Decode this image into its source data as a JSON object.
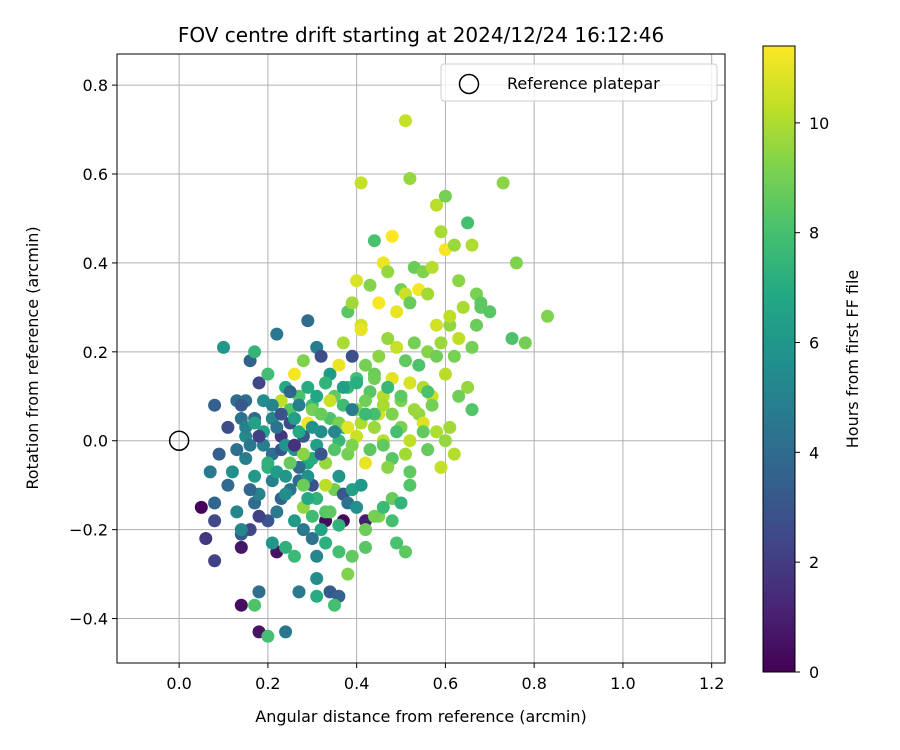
{
  "chart_data": {
    "type": "scatter",
    "title": "FOV centre drift starting at 2024/12/24 16:12:46",
    "xlabel": "Angular distance from reference (arcmin)",
    "ylabel": "Rotation from reference (arcmin)",
    "xlim": [
      -0.14,
      1.23
    ],
    "ylim": [
      -0.5,
      0.87
    ],
    "xticks": [
      0.0,
      0.2,
      0.4,
      0.6,
      0.8,
      1.0,
      1.2
    ],
    "xtick_labels": [
      "0.0",
      "0.2",
      "0.4",
      "0.6",
      "0.8",
      "1.0",
      "1.2"
    ],
    "yticks": [
      -0.4,
      -0.2,
      0.0,
      0.2,
      0.4,
      0.6,
      0.8
    ],
    "ytick_labels": [
      "−0.4",
      "−0.2",
      "0.0",
      "0.2",
      "0.4",
      "0.6",
      "0.8"
    ],
    "grid": true,
    "legend": {
      "position": "upper-right",
      "entries": [
        "Reference platepar"
      ]
    },
    "reference_point": {
      "x": 0.0,
      "y": 0.0,
      "label": "Reference platepar"
    },
    "colorbar": {
      "label": "Hours from first FF file",
      "min": 0,
      "max": 11.4,
      "ticks": [
        0,
        2,
        4,
        6,
        8,
        10
      ],
      "tick_labels": [
        "0",
        "2",
        "4",
        "6",
        "8",
        "10"
      ],
      "colormap": "viridis"
    },
    "points": [
      [
        0.05,
        -0.15,
        0.1
      ],
      [
        0.06,
        -0.22,
        1.8
      ],
      [
        0.08,
        -0.27,
        2.2
      ],
      [
        0.14,
        -0.37,
        0.4
      ],
      [
        0.18,
        -0.43,
        0.6
      ],
      [
        0.22,
        -0.25,
        0.5
      ],
      [
        0.33,
        -0.18,
        0.3
      ],
      [
        0.37,
        -0.18,
        0.2
      ],
      [
        0.42,
        -0.18,
        0.9
      ],
      [
        0.14,
        -0.24,
        0.7
      ],
      [
        0.18,
        -0.34,
        4.1
      ],
      [
        0.24,
        -0.43,
        4.5
      ],
      [
        0.2,
        -0.44,
        8.0
      ],
      [
        0.17,
        -0.37,
        8.2
      ],
      [
        0.27,
        -0.34,
        4.6
      ],
      [
        0.31,
        -0.35,
        7.0
      ],
      [
        0.34,
        -0.34,
        3.2
      ],
      [
        0.36,
        -0.35,
        3.5
      ],
      [
        0.35,
        -0.37,
        8.0
      ],
      [
        0.31,
        -0.31,
        5.5
      ],
      [
        0.38,
        -0.3,
        9.2
      ],
      [
        0.39,
        -0.26,
        8.6
      ],
      [
        0.42,
        -0.24,
        8.4
      ],
      [
        0.49,
        -0.23,
        8.1
      ],
      [
        0.51,
        -0.25,
        8.5
      ],
      [
        0.08,
        -0.18,
        2.5
      ],
      [
        0.11,
        -0.1,
        3.9
      ],
      [
        0.13,
        -0.16,
        5.1
      ],
      [
        0.14,
        -0.21,
        3.3
      ],
      [
        0.16,
        -0.2,
        2.5
      ],
      [
        0.17,
        -0.14,
        4.0
      ],
      [
        0.2,
        -0.18,
        3.0
      ],
      [
        0.21,
        -0.23,
        6.0
      ],
      [
        0.24,
        -0.24,
        7.3
      ],
      [
        0.26,
        -0.26,
        7.7
      ],
      [
        0.28,
        -0.2,
        4.6
      ],
      [
        0.3,
        -0.22,
        4.3
      ],
      [
        0.31,
        -0.26,
        5.2
      ],
      [
        0.33,
        -0.23,
        7.2
      ],
      [
        0.36,
        -0.25,
        8.0
      ],
      [
        0.08,
        -0.14,
        3.7
      ],
      [
        0.12,
        -0.07,
        5.6
      ],
      [
        0.15,
        -0.04,
        4.9
      ],
      [
        0.17,
        -0.08,
        6.1
      ],
      [
        0.18,
        -0.12,
        5.0
      ],
      [
        0.2,
        -0.06,
        7.2
      ],
      [
        0.21,
        -0.09,
        4.8
      ],
      [
        0.23,
        -0.13,
        3.6
      ],
      [
        0.25,
        -0.11,
        4.4
      ],
      [
        0.27,
        -0.09,
        3.9
      ],
      [
        0.29,
        -0.05,
        6.8
      ],
      [
        0.3,
        -0.1,
        2.9
      ],
      [
        0.31,
        -0.13,
        7.4
      ],
      [
        0.33,
        -0.16,
        8.3
      ],
      [
        0.35,
        -0.11,
        8.9
      ],
      [
        0.37,
        -0.12,
        3.1
      ],
      [
        0.39,
        -0.11,
        6.5
      ],
      [
        0.41,
        -0.1,
        6.0
      ],
      [
        0.45,
        -0.17,
        9.2
      ],
      [
        0.48,
        -0.13,
        8.7
      ],
      [
        0.07,
        -0.07,
        4.6
      ],
      [
        0.09,
        -0.03,
        3.4
      ],
      [
        0.11,
        0.03,
        2.6
      ],
      [
        0.13,
        -0.02,
        4.2
      ],
      [
        0.15,
        0.01,
        5.3
      ],
      [
        0.17,
        0.05,
        3.9
      ],
      [
        0.19,
        0.02,
        6.6
      ],
      [
        0.21,
        -0.03,
        4.1
      ],
      [
        0.23,
        0.01,
        1.7
      ],
      [
        0.25,
        0.04,
        2.6
      ],
      [
        0.26,
        -0.02,
        5.8
      ],
      [
        0.28,
        0.01,
        3.1
      ],
      [
        0.3,
        -0.04,
        7.0
      ],
      [
        0.32,
        0.02,
        5.5
      ],
      [
        0.34,
        0.05,
        8.2
      ],
      [
        0.36,
        0.0,
        7.6
      ],
      [
        0.38,
        -0.03,
        9.0
      ],
      [
        0.4,
        0.01,
        10.5
      ],
      [
        0.42,
        -0.05,
        11.0
      ],
      [
        0.44,
        0.03,
        9.7
      ],
      [
        0.46,
        0.0,
        10.2
      ],
      [
        0.48,
        -0.04,
        8.4
      ],
      [
        0.5,
        0.03,
        9.1
      ],
      [
        0.52,
        0.0,
        10.3
      ],
      [
        0.54,
        0.06,
        9.5
      ],
      [
        0.56,
        -0.02,
        8.7
      ],
      [
        0.58,
        0.02,
        10.0
      ],
      [
        0.59,
        -0.06,
        10.4
      ],
      [
        0.61,
        0.03,
        9.8
      ],
      [
        0.52,
        -0.07,
        8.6
      ],
      [
        0.08,
        0.08,
        3.4
      ],
      [
        0.1,
        0.21,
        6.0
      ],
      [
        0.14,
        0.05,
        4.4
      ],
      [
        0.15,
        0.09,
        4.0
      ],
      [
        0.16,
        0.18,
        3.6
      ],
      [
        0.17,
        0.2,
        7.5
      ],
      [
        0.18,
        0.13,
        2.4
      ],
      [
        0.2,
        0.15,
        7.9
      ],
      [
        0.22,
        0.24,
        4.5
      ],
      [
        0.23,
        0.09,
        10.3
      ],
      [
        0.24,
        0.12,
        6.9
      ],
      [
        0.25,
        0.07,
        8.3
      ],
      [
        0.26,
        0.15,
        11.2
      ],
      [
        0.27,
        0.1,
        8.1
      ],
      [
        0.28,
        0.18,
        9.2
      ],
      [
        0.29,
        0.27,
        4.0
      ],
      [
        0.3,
        0.08,
        7.7
      ],
      [
        0.31,
        0.21,
        4.8
      ],
      [
        0.32,
        0.19,
        2.7
      ],
      [
        0.33,
        0.13,
        6.6
      ],
      [
        0.34,
        0.15,
        6.2
      ],
      [
        0.35,
        0.1,
        8.6
      ],
      [
        0.36,
        0.17,
        11.1
      ],
      [
        0.37,
        0.22,
        9.9
      ],
      [
        0.38,
        0.12,
        7.5
      ],
      [
        0.39,
        0.19,
        2.8
      ],
      [
        0.4,
        0.14,
        7.9
      ],
      [
        0.41,
        0.26,
        10.6
      ],
      [
        0.42,
        0.17,
        9.0
      ],
      [
        0.43,
        0.11,
        8.4
      ],
      [
        0.44,
        0.15,
        8.8
      ],
      [
        0.45,
        0.19,
        9.4
      ],
      [
        0.46,
        0.1,
        10.1
      ],
      [
        0.47,
        0.23,
        9.6
      ],
      [
        0.48,
        0.14,
        10.9
      ],
      [
        0.49,
        0.21,
        10.4
      ],
      [
        0.5,
        0.09,
        9.2
      ],
      [
        0.51,
        0.18,
        8.6
      ],
      [
        0.52,
        0.13,
        10.7
      ],
      [
        0.53,
        0.22,
        9.0
      ],
      [
        0.54,
        0.17,
        8.2
      ],
      [
        0.55,
        0.12,
        10.0
      ],
      [
        0.56,
        0.2,
        9.3
      ],
      [
        0.57,
        0.1,
        10.5
      ],
      [
        0.58,
        0.19,
        8.9
      ],
      [
        0.59,
        0.22,
        9.7
      ],
      [
        0.6,
        0.15,
        10.2
      ],
      [
        0.61,
        0.26,
        9.5
      ],
      [
        0.62,
        0.19,
        9.1
      ],
      [
        0.63,
        0.23,
        10.3
      ],
      [
        0.64,
        0.3,
        9.9
      ],
      [
        0.65,
        0.12,
        9.6
      ],
      [
        0.66,
        0.21,
        9.0
      ],
      [
        0.67,
        0.26,
        8.8
      ],
      [
        0.68,
        0.3,
        8.5
      ],
      [
        0.38,
        0.29,
        8.4
      ],
      [
        0.39,
        0.31,
        9.8
      ],
      [
        0.4,
        0.36,
        10.8
      ],
      [
        0.41,
        0.25,
        11.0
      ],
      [
        0.43,
        0.35,
        9.3
      ],
      [
        0.44,
        0.45,
        8.1
      ],
      [
        0.45,
        0.31,
        11.3
      ],
      [
        0.46,
        0.4,
        11.1
      ],
      [
        0.47,
        0.38,
        9.6
      ],
      [
        0.48,
        0.46,
        11.4
      ],
      [
        0.49,
        0.29,
        11.0
      ],
      [
        0.5,
        0.34,
        9.0
      ],
      [
        0.51,
        0.33,
        10.5
      ],
      [
        0.52,
        0.31,
        8.7
      ],
      [
        0.53,
        0.39,
        8.8
      ],
      [
        0.54,
        0.34,
        11.2
      ],
      [
        0.55,
        0.38,
        9.2
      ],
      [
        0.56,
        0.33,
        9.8
      ],
      [
        0.57,
        0.39,
        10.1
      ],
      [
        0.58,
        0.26,
        10.6
      ],
      [
        0.59,
        0.47,
        9.9
      ],
      [
        0.6,
        0.43,
        11.3
      ],
      [
        0.61,
        0.28,
        10.3
      ],
      [
        0.62,
        0.44,
        9.7
      ],
      [
        0.63,
        0.36,
        9.4
      ],
      [
        0.65,
        0.49,
        8.0
      ],
      [
        0.66,
        0.44,
        10.0
      ],
      [
        0.67,
        0.33,
        9.1
      ],
      [
        0.68,
        0.31,
        8.5
      ],
      [
        0.7,
        0.29,
        8.4
      ],
      [
        0.41,
        0.58,
        10.4
      ],
      [
        0.51,
        0.72,
        10.4
      ],
      [
        0.52,
        0.59,
        9.6
      ],
      [
        0.58,
        0.53,
        10.2
      ],
      [
        0.6,
        0.55,
        9.0
      ],
      [
        0.73,
        0.58,
        9.4
      ],
      [
        0.76,
        0.4,
        9.2
      ],
      [
        0.75,
        0.23,
        8.2
      ],
      [
        0.78,
        0.22,
        9.0
      ],
      [
        0.83,
        0.28,
        9.2
      ],
      [
        0.23,
        -0.02,
        3.0
      ],
      [
        0.27,
        -0.06,
        4.0
      ],
      [
        0.29,
        -0.08,
        5.7
      ],
      [
        0.31,
        -0.01,
        6.4
      ],
      [
        0.33,
        -0.05,
        9.6
      ],
      [
        0.35,
        -0.02,
        8.3
      ],
      [
        0.37,
        0.03,
        7.2
      ],
      [
        0.39,
        -0.01,
        9.2
      ],
      [
        0.41,
        0.04,
        10.0
      ],
      [
        0.43,
        -0.02,
        8.5
      ],
      [
        0.45,
        0.06,
        10.6
      ],
      [
        0.47,
        -0.06,
        9.4
      ],
      [
        0.49,
        0.02,
        8.0
      ],
      [
        0.51,
        -0.03,
        9.8
      ],
      [
        0.55,
        0.04,
        10.8
      ],
      [
        0.57,
        0.08,
        9.0
      ],
      [
        0.6,
        0.0,
        9.6
      ],
      [
        0.63,
        0.1,
        8.9
      ],
      [
        0.66,
        0.07,
        8.3
      ],
      [
        0.62,
        -0.03,
        10.1
      ],
      [
        0.19,
        -0.01,
        4.8
      ],
      [
        0.21,
        0.05,
        5.2
      ],
      [
        0.22,
        -0.07,
        6.3
      ],
      [
        0.24,
        -0.01,
        5.9
      ],
      [
        0.25,
        -0.05,
        8.7
      ],
      [
        0.26,
        0.05,
        6.4
      ],
      [
        0.27,
        0.02,
        6.9
      ],
      [
        0.28,
        -0.03,
        9.4
      ],
      [
        0.29,
        0.04,
        11.2
      ],
      [
        0.3,
        0.07,
        9.0
      ],
      [
        0.32,
        0.06,
        8.7
      ],
      [
        0.33,
        -0.1,
        10.2
      ],
      [
        0.34,
        0.09,
        10.5
      ],
      [
        0.36,
        0.04,
        9.1
      ],
      [
        0.37,
        0.08,
        7.8
      ],
      [
        0.38,
        0.03,
        10.9
      ],
      [
        0.4,
        0.07,
        9.3
      ],
      [
        0.42,
        0.09,
        8.9
      ],
      [
        0.44,
        0.06,
        8.0
      ],
      [
        0.46,
        0.08,
        9.9
      ],
      [
        0.22,
        -0.16,
        4.6
      ],
      [
        0.24,
        -0.12,
        5.5
      ],
      [
        0.26,
        -0.18,
        6.2
      ],
      [
        0.28,
        -0.15,
        9.5
      ],
      [
        0.29,
        -0.13,
        6.9
      ],
      [
        0.3,
        -0.17,
        7.8
      ],
      [
        0.32,
        -0.2,
        6.7
      ],
      [
        0.34,
        -0.16,
        8.5
      ],
      [
        0.36,
        -0.19,
        7.3
      ],
      [
        0.38,
        -0.14,
        4.3
      ],
      [
        0.4,
        -0.15,
        5.6
      ],
      [
        0.42,
        -0.2,
        8.8
      ],
      [
        0.44,
        -0.17,
        9.0
      ],
      [
        0.46,
        -0.15,
        7.7
      ],
      [
        0.48,
        -0.18,
        8.0
      ],
      [
        0.5,
        -0.14,
        7.4
      ],
      [
        0.52,
        -0.1,
        8.3
      ],
      [
        0.14,
        -0.2,
        5.2
      ],
      [
        0.16,
        -0.11,
        3.8
      ],
      [
        0.18,
        -0.17,
        2.2
      ],
      [
        0.13,
        0.09,
        4.0
      ],
      [
        0.14,
        0.08,
        3.1
      ],
      [
        0.15,
        0.03,
        5.0
      ],
      [
        0.16,
        -0.01,
        4.5
      ],
      [
        0.17,
        0.04,
        6.5
      ],
      [
        0.18,
        0.01,
        2.1
      ],
      [
        0.19,
        0.09,
        5.5
      ],
      [
        0.2,
        -0.05,
        7.3
      ],
      [
        0.21,
        0.08,
        5.1
      ],
      [
        0.22,
        0.03,
        4.3
      ],
      [
        0.23,
        0.06,
        2.9
      ],
      [
        0.24,
        -0.08,
        6.0
      ],
      [
        0.25,
        0.11,
        3.7
      ],
      [
        0.26,
        -0.01,
        1.6
      ],
      [
        0.27,
        0.08,
        4.9
      ],
      [
        0.28,
        -0.1,
        8.8
      ],
      [
        0.29,
        0.12,
        7.0
      ],
      [
        0.3,
        0.03,
        5.7
      ],
      [
        0.31,
        0.1,
        6.8
      ],
      [
        0.32,
        -0.03,
        3.0
      ],
      [
        0.33,
        0.13,
        7.4
      ],
      [
        0.35,
        0.02,
        5.2
      ],
      [
        0.36,
        -0.08,
        5.9
      ],
      [
        0.37,
        0.12,
        6.4
      ],
      [
        0.39,
        0.07,
        4.7
      ],
      [
        0.4,
        0.13,
        7.1
      ],
      [
        0.42,
        0.06,
        7.7
      ],
      [
        0.44,
        0.14,
        8.9
      ],
      [
        0.46,
        -0.01,
        8.6
      ],
      [
        0.47,
        0.12,
        7.6
      ],
      [
        0.48,
        0.06,
        9.2
      ],
      [
        0.5,
        0.1,
        8.5
      ],
      [
        0.53,
        0.07,
        9.7
      ],
      [
        0.55,
        0.02,
        8.6
      ],
      [
        0.56,
        0.11,
        8.1
      ]
    ]
  }
}
